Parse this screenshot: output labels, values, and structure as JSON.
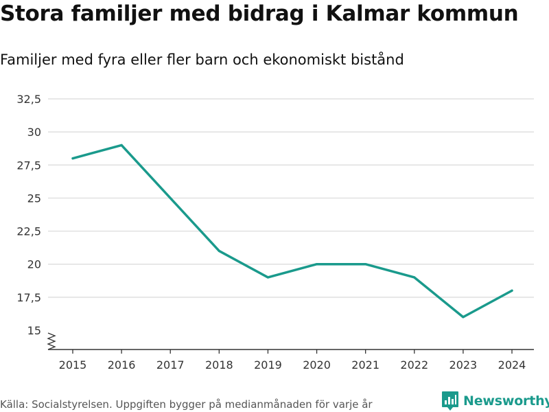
{
  "title": "Stora familjer med bidrag i Kalmar kommun",
  "subtitle": "Familjer med fyra eller fler barn och ekonomiskt bistånd",
  "source": "Källa: Socialstyrelsen. Uppgiften bygger på medianmånaden för varje år",
  "brand": {
    "name": "Newsworthy",
    "color": "#1a9a8c"
  },
  "chart_data": {
    "type": "line",
    "title": "Stora familjer med bidrag i Kalmar kommun",
    "subtitle": "Familjer med fyra eller fler barn och ekonomiskt bistånd",
    "xlabel": "",
    "ylabel": "",
    "x": [
      "2015",
      "2016",
      "2017",
      "2018",
      "2019",
      "2020",
      "2021",
      "2022",
      "2023",
      "2024"
    ],
    "series": [
      {
        "name": "Familjer",
        "values": [
          28,
          29,
          25,
          21,
          19,
          20,
          20,
          19,
          16,
          18
        ],
        "color": "#1a9a8c"
      }
    ],
    "ylim": [
      15,
      32.5
    ],
    "yticks": [
      15,
      17.5,
      20,
      22.5,
      25,
      27.5,
      30,
      32.5
    ],
    "ytick_labels": [
      "15",
      "17,5",
      "20",
      "22,5",
      "25",
      "27,5",
      "30",
      "32,5"
    ],
    "y_axis_break": true,
    "grid": true,
    "legend": "none"
  }
}
